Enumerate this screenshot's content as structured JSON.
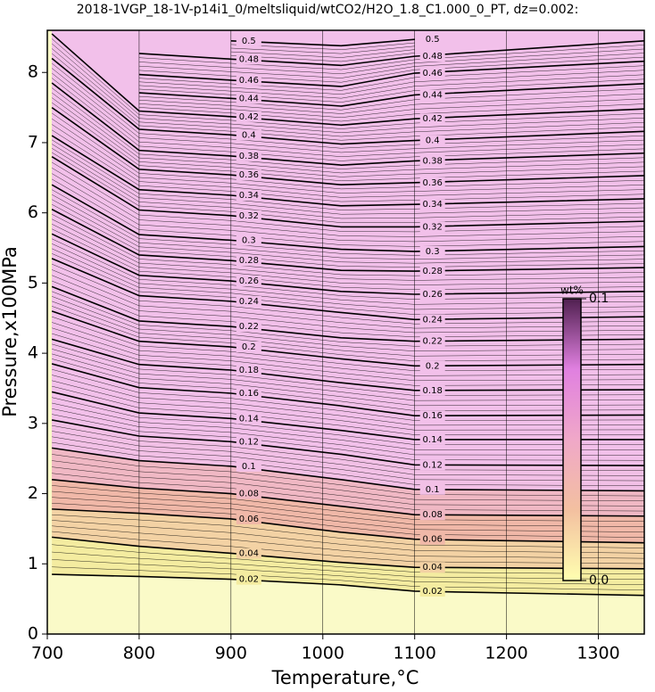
{
  "chart_data": {
    "type": "contour",
    "title": "2018-1VGP_18-1V-p14i1_0/meltsliquid/wtCO2/H2O_1.8_C1.000_0_PT, dz=0.002:",
    "x_label": "Temperature,°C",
    "y_label": "Pressure,x100MPa",
    "xlim": [
      700,
      1350
    ],
    "ylim": [
      0,
      8.6
    ],
    "xticks": [
      700,
      800,
      900,
      1000,
      1100,
      1200,
      1300
    ],
    "yticks": [
      0,
      1,
      2,
      3,
      4,
      5,
      6,
      7,
      8
    ],
    "grid": true,
    "x": [
      705,
      800,
      900,
      1020,
      1100,
      1350
    ],
    "series": [
      {
        "name": "0.02",
        "color": "#f4eca0",
        "values": [
          0.85,
          0.82,
          0.78,
          0.7,
          0.61,
          0.55
        ]
      },
      {
        "name": "0.04",
        "color": "#f3d2a4",
        "values": [
          1.38,
          1.25,
          1.15,
          1.02,
          0.95,
          0.93
        ]
      },
      {
        "name": "0.06",
        "color": "#f0b8a8",
        "values": [
          1.78,
          1.72,
          1.64,
          1.45,
          1.35,
          1.3
        ]
      },
      {
        "name": "0.08",
        "color": "#f0b8c4",
        "values": [
          2.2,
          2.08,
          2.0,
          1.82,
          1.7,
          1.68
        ]
      },
      {
        "name": "0.1",
        "color": "#f2c0e6",
        "values": [
          2.65,
          2.47,
          2.39,
          2.2,
          2.06,
          2.04
        ]
      },
      {
        "name": "0.12",
        "color": "#f2c0ea",
        "values": [
          3.05,
          2.82,
          2.74,
          2.56,
          2.41,
          2.4
        ]
      },
      {
        "name": "0.14",
        "color": "#f2c0ea",
        "values": [
          3.45,
          3.15,
          3.07,
          2.9,
          2.77,
          2.77
        ]
      },
      {
        "name": "0.16",
        "color": "#f2c0ea",
        "values": [
          3.85,
          3.51,
          3.43,
          3.25,
          3.11,
          3.12
        ]
      },
      {
        "name": "0.18",
        "color": "#f2c0ea",
        "values": [
          4.2,
          3.84,
          3.76,
          3.58,
          3.47,
          3.48
        ]
      },
      {
        "name": "0.2",
        "color": "#f2c0ea",
        "values": [
          4.6,
          4.17,
          4.09,
          3.92,
          3.82,
          3.84
        ]
      },
      {
        "name": "0.22",
        "color": "#f2c0ea",
        "values": [
          4.95,
          4.46,
          4.38,
          4.22,
          4.17,
          4.2
        ]
      },
      {
        "name": "0.24",
        "color": "#f2c0ea",
        "values": [
          5.35,
          4.82,
          4.74,
          4.58,
          4.48,
          4.52
        ]
      },
      {
        "name": "0.26",
        "color": "#f2c0ea",
        "values": [
          5.7,
          5.11,
          5.03,
          4.88,
          4.84,
          4.88
        ]
      },
      {
        "name": "0.28",
        "color": "#f2c0ea",
        "values": [
          6.05,
          5.4,
          5.32,
          5.18,
          5.17,
          5.22
        ]
      },
      {
        "name": "0.3",
        "color": "#f2c0ea",
        "values": [
          6.4,
          5.69,
          5.61,
          5.48,
          5.45,
          5.52
        ]
      },
      {
        "name": "0.32",
        "color": "#f2c0ea",
        "values": [
          6.8,
          6.04,
          5.96,
          5.8,
          5.8,
          5.88
        ]
      },
      {
        "name": "0.34",
        "color": "#f2c0ea",
        "values": [
          7.1,
          6.33,
          6.25,
          6.1,
          6.12,
          6.2
        ]
      },
      {
        "name": "0.36",
        "color": "#f2c0ea",
        "values": [
          7.5,
          6.62,
          6.54,
          6.4,
          6.43,
          6.53
        ]
      },
      {
        "name": "0.38",
        "color": "#f2c0ea",
        "values": [
          7.85,
          6.89,
          6.81,
          6.68,
          6.74,
          6.85
        ]
      },
      {
        "name": "0.4",
        "color": "#f2c0ea",
        "values": [
          8.2,
          7.19,
          7.11,
          6.98,
          7.03,
          7.16
        ]
      },
      {
        "name": "0.42",
        "color": "#f2c0ea",
        "values": [
          8.55,
          7.45,
          7.37,
          7.25,
          7.34,
          7.48
        ]
      },
      {
        "name": "0.44",
        "color": "#f2c0ea",
        "values": [
          null,
          7.71,
          7.63,
          7.52,
          7.68,
          7.84
        ]
      },
      {
        "name": "0.46",
        "color": "#f2c0ea",
        "values": [
          null,
          7.97,
          7.89,
          7.8,
          7.99,
          8.16
        ]
      },
      {
        "name": "0.48",
        "color": "#f2c0ea",
        "values": [
          null,
          8.27,
          8.19,
          8.1,
          8.23,
          8.45
        ]
      },
      {
        "name": "0.5",
        "color": "#f2c0ea",
        "values": [
          null,
          null,
          8.45,
          8.38,
          8.47,
          null
        ]
      }
    ],
    "base_color": "#fafac8",
    "colorbar": {
      "label": "wt%",
      "colors": [
        "#ffffb0",
        "#f3c0a0",
        "#f0a8c8",
        "#e080e0",
        "#502050"
      ],
      "ticks": [
        {
          "value": 0,
          "label": "0.0"
        },
        {
          "value": 0.1,
          "label": "0.1"
        }
      ]
    }
  }
}
